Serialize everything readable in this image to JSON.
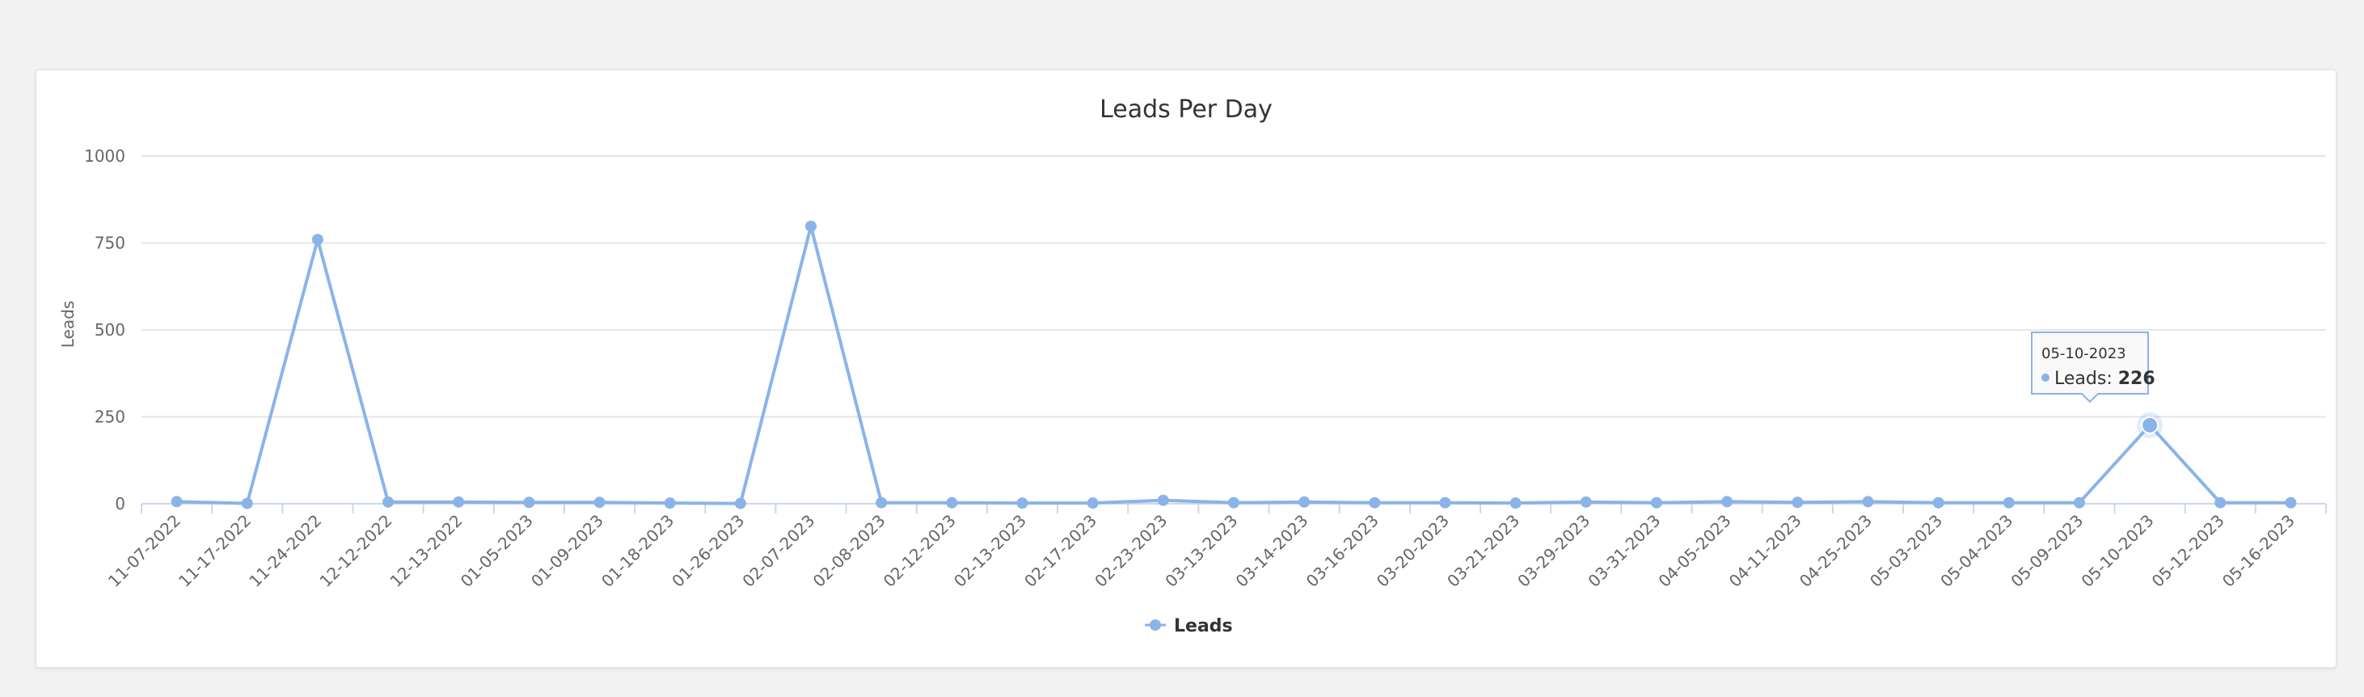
{
  "chart_data": {
    "type": "line",
    "title": "Leads Per Day",
    "ylabel": "Leads",
    "xlabel": "",
    "ylim": [
      0,
      1000
    ],
    "yticks": [
      0,
      250,
      500,
      750,
      1000
    ],
    "grid": true,
    "legend_position": "bottom-center",
    "color": "#8ab4e8",
    "categories": [
      "11-07-2022",
      "11-17-2022",
      "11-24-2022",
      "12-12-2022",
      "12-13-2022",
      "01-05-2023",
      "01-09-2023",
      "01-18-2023",
      "01-26-2023",
      "02-07-2023",
      "02-08-2023",
      "02-12-2023",
      "02-13-2023",
      "02-17-2023",
      "02-23-2023",
      "03-13-2023",
      "03-14-2023",
      "03-16-2023",
      "03-20-2023",
      "03-21-2023",
      "03-29-2023",
      "03-31-2023",
      "04-05-2023",
      "04-11-2023",
      "04-25-2023",
      "05-03-2023",
      "05-04-2023",
      "05-09-2023",
      "05-10-2023",
      "05-12-2023",
      "05-16-2023"
    ],
    "series": [
      {
        "name": "Leads",
        "values": [
          6,
          1,
          760,
          5,
          5,
          4,
          4,
          2,
          1,
          798,
          3,
          3,
          2,
          2,
          10,
          3,
          5,
          3,
          3,
          2,
          5,
          3,
          6,
          4,
          6,
          3,
          3,
          3,
          226,
          3,
          3
        ]
      }
    ],
    "tooltip": {
      "date": "05-10-2023",
      "label": "Leads: ",
      "value": "226"
    }
  }
}
